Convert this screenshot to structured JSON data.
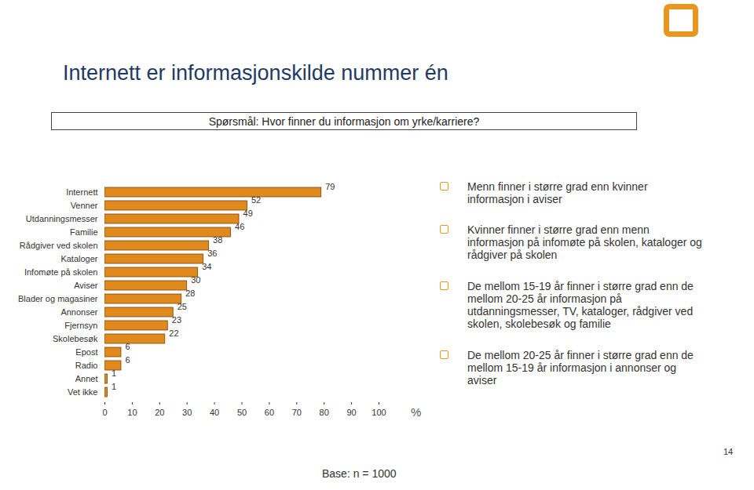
{
  "chart_data": {
    "type": "bar",
    "orientation": "horizontal",
    "title": "Internett er informasjonskilde nummer én",
    "subtitle": "Spørsmål: Hvor finner du informasjon om yrke/karriere?",
    "categories": [
      "Internett",
      "Venner",
      "Utdanningsmesser",
      "Familie",
      "Rådgiver ved skolen",
      "Kataloger",
      "Infomøte på skolen",
      "Aviser",
      "Blader og magasiner",
      "Annonser",
      "Fjernsyn",
      "Skolebesøk",
      "Epost",
      "Radio",
      "Annet",
      "Vet ikke"
    ],
    "values": [
      79,
      52,
      49,
      46,
      38,
      36,
      34,
      30,
      28,
      25,
      23,
      22,
      6,
      6,
      1,
      1
    ],
    "color": "#e08a1e",
    "xlim": [
      0,
      100
    ],
    "xticks": [
      0,
      10,
      20,
      30,
      40,
      50,
      60,
      70,
      80,
      90,
      100
    ],
    "xlabel": "%",
    "data_labels": true,
    "grid": false,
    "annotations": [
      "Menn finner i større grad enn kvinner informasjon i aviser",
      "Kvinner finner i større grad enn menn informasjon på infomøte på skolen, kataloger og rådgiver på skolen",
      "De mellom 15-19 år finner i større grad enn de mellom 20-25 år informasjon på utdanningsmesser, TV, kataloger, rådgiver ved skolen, skolebesøk og familie",
      "De mellom 20-25 år finner i større grad enn de mellom 15-19 år informasjon i annonser og aviser"
    ],
    "caption": "Base: n = 1000",
    "page_number": "14"
  }
}
